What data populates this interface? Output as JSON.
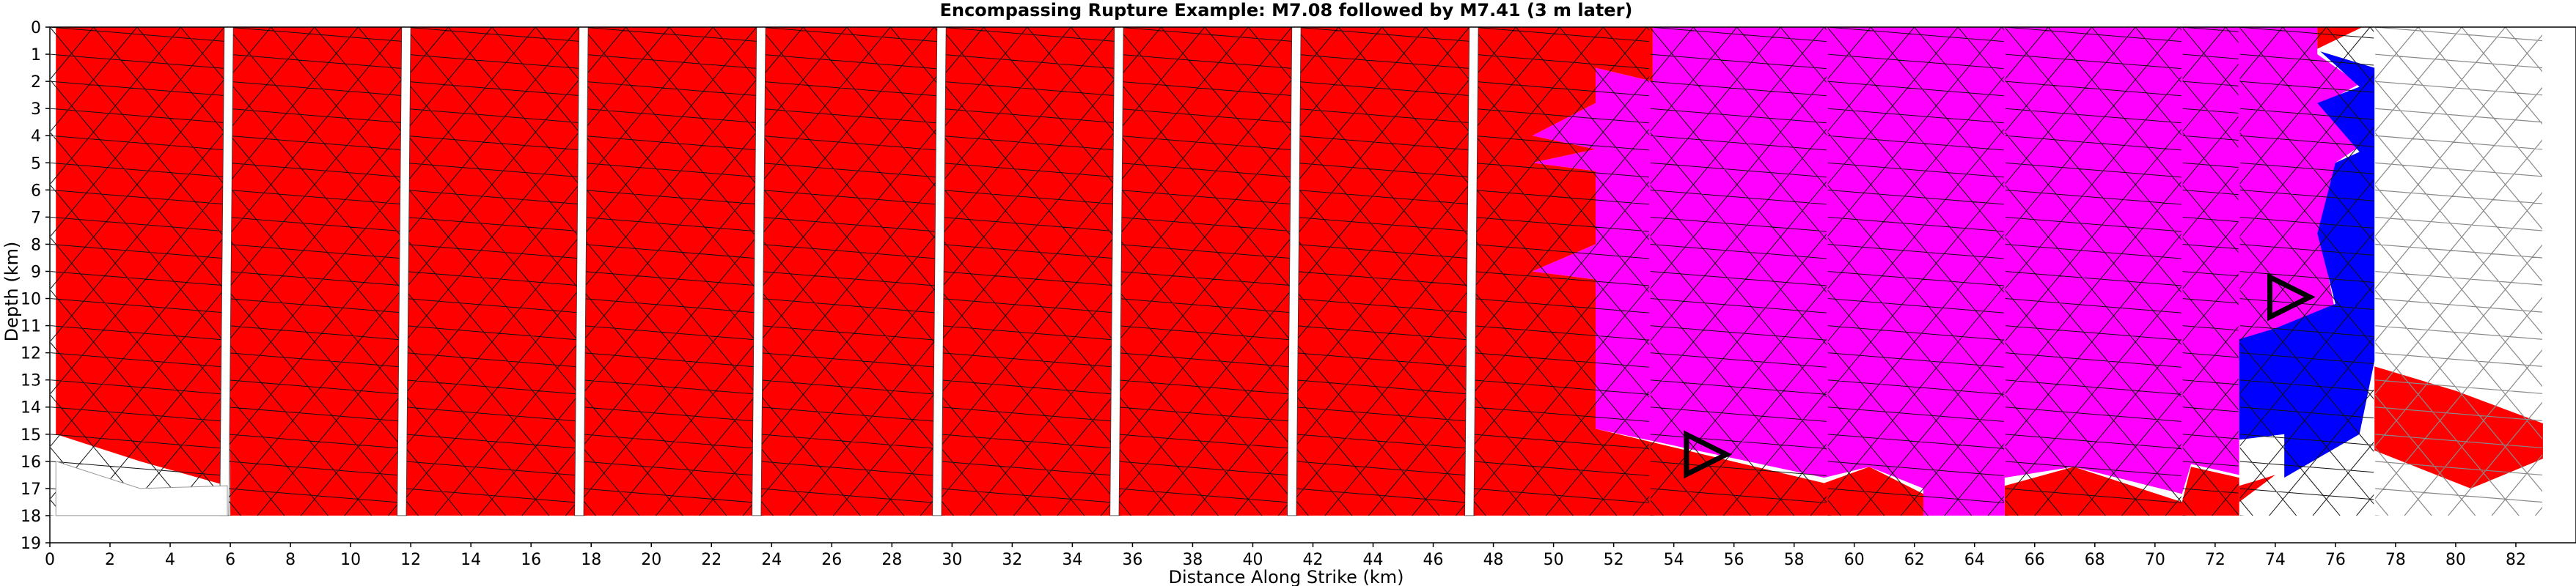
{
  "chart_data": {
    "type": "heatmap",
    "title": "Encompassing Rupture Example: M7.08 followed by M7.41 (3 m later)",
    "xlabel": "Distance Along Strike (km)",
    "ylabel": "Depth (km)",
    "xlim": [
      0,
      84
    ],
    "ylim": [
      19,
      0
    ],
    "x_ticks": [
      0,
      2,
      4,
      6,
      8,
      10,
      12,
      14,
      16,
      18,
      20,
      22,
      24,
      26,
      28,
      30,
      32,
      34,
      36,
      38,
      40,
      42,
      44,
      46,
      48,
      50,
      52,
      54,
      56,
      58,
      60,
      62,
      64,
      66,
      68,
      70,
      72,
      74,
      76,
      78,
      80,
      82
    ],
    "y_ticks": [
      0,
      1,
      2,
      3,
      4,
      5,
      6,
      7,
      8,
      9,
      10,
      11,
      12,
      13,
      14,
      15,
      16,
      17,
      18,
      19
    ],
    "colors": {
      "first_event": "#ff0000",
      "second_event": "#ff00ff",
      "unruptured": "#ffffff",
      "blue_region": "#0000ff"
    },
    "fault_sections": [
      {
        "x0": 0.0,
        "x1": 5.9
      },
      {
        "x0": 5.9,
        "x1": 11.8
      },
      {
        "x0": 11.8,
        "x1": 17.7
      },
      {
        "x0": 17.7,
        "x1": 23.6
      },
      {
        "x0": 23.6,
        "x1": 29.6
      },
      {
        "x0": 29.6,
        "x1": 35.5
      },
      {
        "x0": 35.5,
        "x1": 41.4
      },
      {
        "x0": 41.4,
        "x1": 47.3
      },
      {
        "x0": 47.3,
        "x1": 53.2
      },
      {
        "x0": 53.2,
        "x1": 59.1
      },
      {
        "x0": 59.1,
        "x1": 65.0
      },
      {
        "x0": 65.0,
        "x1": 70.9
      },
      {
        "x0": 70.9,
        "x1": 72.8
      },
      {
        "x0": 72.8,
        "x1": 77.3
      },
      {
        "x0": 77.3,
        "x1": 82.9
      }
    ],
    "regions": [
      {
        "name": "first-rupture-west",
        "color": "red",
        "polygon": [
          [
            0.2,
            0
          ],
          [
            5.9,
            0
          ],
          [
            5.9,
            16.9
          ],
          [
            3.0,
            16.0
          ],
          [
            0.2,
            15.0
          ]
        ]
      },
      {
        "name": "first-rupture-main",
        "color": "red",
        "polygon": [
          [
            5.9,
            0
          ],
          [
            53.3,
            0
          ],
          [
            53.3,
            2.0
          ],
          [
            51.4,
            1.5
          ],
          [
            51.4,
            2.8
          ],
          [
            49.3,
            4.0
          ],
          [
            51.4,
            4.5
          ],
          [
            49.3,
            5.0
          ],
          [
            51.4,
            5.3
          ],
          [
            51.4,
            8.0
          ],
          [
            49.3,
            9.0
          ],
          [
            51.4,
            9.3
          ],
          [
            51.4,
            14.8
          ],
          [
            59.0,
            16.8
          ],
          [
            60.5,
            16.2
          ],
          [
            62.3,
            17.2
          ],
          [
            62.3,
            18.0
          ],
          [
            6.0,
            18.0
          ]
        ]
      },
      {
        "name": "first-rupture-east",
        "color": "red",
        "polygon": [
          [
            65.0,
            18.0
          ],
          [
            65.0,
            16.9
          ],
          [
            67.3,
            16.2
          ],
          [
            70.9,
            17.5
          ],
          [
            71.2,
            16.2
          ],
          [
            72.8,
            16.6
          ],
          [
            72.8,
            18.0
          ]
        ]
      },
      {
        "name": "first-rupture-tip",
        "color": "red",
        "polygon": [
          [
            72.8,
            16.9
          ],
          [
            74.0,
            16.5
          ],
          [
            72.8,
            17.5
          ]
        ]
      },
      {
        "name": "second-rupture",
        "color": "magenta",
        "polygon": [
          [
            53.3,
            0
          ],
          [
            75.4,
            0
          ],
          [
            75.4,
            1.0
          ],
          [
            76.8,
            2.1
          ],
          [
            75.6,
            2.8
          ],
          [
            76.8,
            4.4
          ],
          [
            76.0,
            5.0
          ],
          [
            75.5,
            7.7
          ],
          [
            76.0,
            10.5
          ],
          [
            74.0,
            11.7
          ],
          [
            72.8,
            12.3
          ],
          [
            72.8,
            16.5
          ],
          [
            71.2,
            16.1
          ],
          [
            70.9,
            17.2
          ],
          [
            67.3,
            16.2
          ],
          [
            65.0,
            16.6
          ],
          [
            65.0,
            18.0
          ],
          [
            62.3,
            18.0
          ],
          [
            62.3,
            17.0
          ],
          [
            60.5,
            16.2
          ],
          [
            59.0,
            16.6
          ],
          [
            51.4,
            14.8
          ],
          [
            51.4,
            9.3
          ],
          [
            49.3,
            9.0
          ],
          [
            51.4,
            8.0
          ],
          [
            51.4,
            5.3
          ],
          [
            49.3,
            5.0
          ],
          [
            51.4,
            4.5
          ],
          [
            49.3,
            4.0
          ],
          [
            51.4,
            2.8
          ],
          [
            51.4,
            1.5
          ],
          [
            53.3,
            2.0
          ]
        ]
      },
      {
        "name": "red-top-east",
        "color": "red",
        "polygon": [
          [
            75.4,
            0
          ],
          [
            76.9,
            0
          ],
          [
            75.4,
            0.8
          ]
        ]
      },
      {
        "name": "blue-east",
        "color": "blue",
        "polygon": [
          [
            75.5,
            0.9
          ],
          [
            77.3,
            1.5
          ],
          [
            77.3,
            12.3
          ],
          [
            76.8,
            15.0
          ],
          [
            74.3,
            16.6
          ],
          [
            74.3,
            15.0
          ],
          [
            72.8,
            15.2
          ],
          [
            72.8,
            11.5
          ],
          [
            74.0,
            11.1
          ],
          [
            76.0,
            10.2
          ],
          [
            75.4,
            7.6
          ],
          [
            76.0,
            5.0
          ],
          [
            76.8,
            4.6
          ],
          [
            75.4,
            2.8
          ],
          [
            76.8,
            2.2
          ]
        ]
      },
      {
        "name": "east-end-rupture",
        "color": "red",
        "polygon": [
          [
            77.3,
            12.5
          ],
          [
            80.0,
            13.4
          ],
          [
            82.9,
            14.6
          ],
          [
            82.9,
            15.9
          ],
          [
            80.5,
            17.0
          ],
          [
            77.3,
            15.6
          ]
        ]
      }
    ],
    "hypocenters": [
      {
        "x": 55.0,
        "y": 15.7
      },
      {
        "x": 74.4,
        "y": 9.9
      }
    ]
  }
}
